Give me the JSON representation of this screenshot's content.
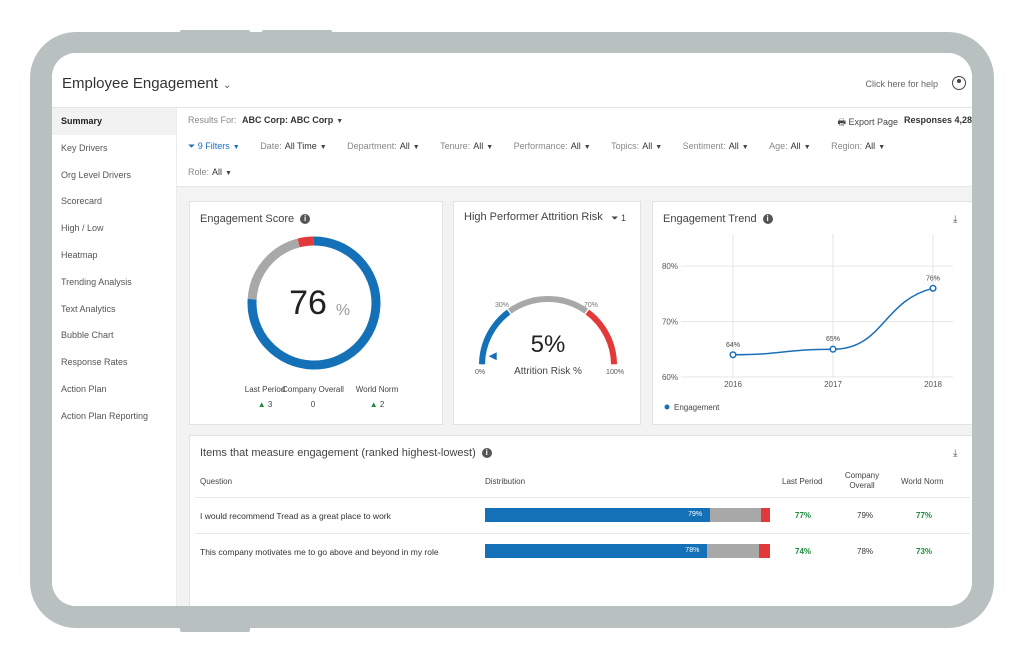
{
  "app": {
    "title": "Employee Engagement",
    "help": "Click here for help"
  },
  "sidebar": {
    "items": [
      {
        "label": "Summary"
      },
      {
        "label": "Key Drivers"
      },
      {
        "label": "Org Level Drivers"
      },
      {
        "label": "Scorecard"
      },
      {
        "label": "High / Low"
      },
      {
        "label": "Heatmap"
      },
      {
        "label": "Trending Analysis"
      },
      {
        "label": "Text Analytics"
      },
      {
        "label": "Bubble Chart"
      },
      {
        "label": "Response Rates"
      },
      {
        "label": "Action Plan"
      },
      {
        "label": "Action Plan Reporting"
      }
    ]
  },
  "filters": {
    "results_for_label": "Results For:",
    "results_for_value": "ABC Corp: ABC Corp",
    "export_label": "Export Page",
    "responses_label": "Responses 4,28",
    "filter_count": "9 Filters",
    "items": [
      {
        "label": "Date:",
        "value": "All Time"
      },
      {
        "label": "Department:",
        "value": "All"
      },
      {
        "label": "Tenure:",
        "value": "All"
      },
      {
        "label": "Performance:",
        "value": "All"
      },
      {
        "label": "Topics:",
        "value": "All"
      },
      {
        "label": "Sentiment:",
        "value": "All"
      },
      {
        "label": "Age:",
        "value": "All"
      },
      {
        "label": "Region:",
        "value": "All"
      }
    ],
    "role": {
      "label": "Role:",
      "value": "All"
    }
  },
  "engagement_score": {
    "title": "Engagement Score",
    "value": "76",
    "unit": "%",
    "ring": {
      "blue": 0.76,
      "gray": 0.2,
      "red": 0.04
    },
    "stats": [
      {
        "label": "Last Period",
        "value": "3",
        "arrow": "▲"
      },
      {
        "label": "Company Overall",
        "value": "0",
        "arrow": ""
      },
      {
        "label": "World Norm",
        "value": "2",
        "arrow": "▲"
      }
    ]
  },
  "attrition": {
    "title": "High Performer Attrition Risk",
    "filter_count": "1",
    "value": "5%",
    "subtitle": "Attrition Risk %",
    "gauge_fraction": 0.05,
    "labels": [
      "0%",
      "30%",
      "70%",
      "100%"
    ]
  },
  "trend": {
    "title": "Engagement Trend"
  },
  "chart_data": {
    "type": "line",
    "title": "Engagement Trend",
    "x": [
      "2016",
      "2017",
      "2018"
    ],
    "series": [
      {
        "name": "Engagement",
        "values": [
          64,
          65,
          76
        ],
        "labels": [
          "64%",
          "65%",
          "76%"
        ]
      }
    ],
    "y_ticks": [
      "60%",
      "70%",
      "80%"
    ],
    "ylim": [
      58,
      84
    ],
    "grid": true,
    "legend": "bottom-left",
    "color": "#1a6fb8"
  },
  "items_table": {
    "title": "Items that measure engagement (ranked highest-lowest)",
    "columns": {
      "question": "Question",
      "distribution": "Distribution",
      "last_period": "Last Period",
      "company_overall": "Company Overall",
      "world_norm": "World Norm"
    },
    "rows": [
      {
        "question": "I would recommend Tread as a great place to work",
        "pct": "79%",
        "fill": 0.79,
        "red": 0.03,
        "last_period": "77%",
        "company_overall": "79%",
        "world_norm": "77%"
      },
      {
        "question": "This company motivates me to go above and beyond in my role",
        "pct": "78%",
        "fill": 0.78,
        "red": 0.04,
        "last_period": "74%",
        "company_overall": "78%",
        "world_norm": "73%"
      }
    ]
  },
  "colors": {
    "accent": "#1471b7",
    "red": "#e2393a",
    "gray": "#a8a8a8",
    "green": "#1e8a3c"
  }
}
